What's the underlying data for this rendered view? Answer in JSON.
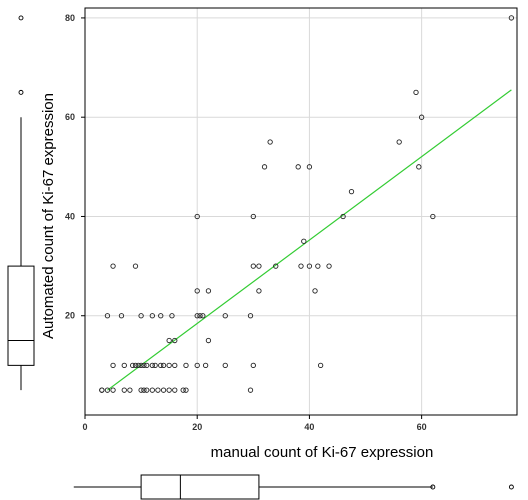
{
  "chart_data": {
    "type": "scatter",
    "title": "",
    "xlabel": "manual count of Ki-67 expression",
    "ylabel": "Automated  count of Ki-67 expression",
    "xlim": [
      0,
      77
    ],
    "ylim": [
      0,
      82
    ],
    "x_ticks": [
      0,
      20,
      40,
      60
    ],
    "y_ticks": [
      20,
      40,
      60,
      80
    ],
    "grid": true,
    "colors": {
      "points": "#222222",
      "trend_line": "#33cc33",
      "grid": "#d9d9d9",
      "axis": "#000000"
    },
    "points": [
      {
        "x": 3,
        "y": 5
      },
      {
        "x": 3,
        "y": 5
      },
      {
        "x": 4,
        "y": 5
      },
      {
        "x": 5,
        "y": 5
      },
      {
        "x": 7,
        "y": 5
      },
      {
        "x": 8,
        "y": 5
      },
      {
        "x": 10,
        "y": 5
      },
      {
        "x": 10.5,
        "y": 5
      },
      {
        "x": 11,
        "y": 5
      },
      {
        "x": 12,
        "y": 5
      },
      {
        "x": 13,
        "y": 5
      },
      {
        "x": 14,
        "y": 5
      },
      {
        "x": 15,
        "y": 5
      },
      {
        "x": 16,
        "y": 5
      },
      {
        "x": 17.5,
        "y": 5
      },
      {
        "x": 18,
        "y": 5
      },
      {
        "x": 29.5,
        "y": 5
      },
      {
        "x": 5,
        "y": 10
      },
      {
        "x": 7,
        "y": 10
      },
      {
        "x": 8.5,
        "y": 10
      },
      {
        "x": 9,
        "y": 10
      },
      {
        "x": 9.5,
        "y": 10
      },
      {
        "x": 10,
        "y": 10
      },
      {
        "x": 10.5,
        "y": 10
      },
      {
        "x": 11,
        "y": 10
      },
      {
        "x": 12,
        "y": 10
      },
      {
        "x": 12.5,
        "y": 10
      },
      {
        "x": 13.5,
        "y": 10
      },
      {
        "x": 14,
        "y": 10
      },
      {
        "x": 15,
        "y": 10
      },
      {
        "x": 16,
        "y": 10
      },
      {
        "x": 18,
        "y": 10
      },
      {
        "x": 20,
        "y": 10
      },
      {
        "x": 21.5,
        "y": 10
      },
      {
        "x": 25,
        "y": 10
      },
      {
        "x": 30,
        "y": 10
      },
      {
        "x": 15,
        "y": 15
      },
      {
        "x": 16,
        "y": 15
      },
      {
        "x": 22,
        "y": 15
      },
      {
        "x": 4,
        "y": 20
      },
      {
        "x": 6.5,
        "y": 20
      },
      {
        "x": 10,
        "y": 20
      },
      {
        "x": 12,
        "y": 20
      },
      {
        "x": 13.5,
        "y": 20
      },
      {
        "x": 15.5,
        "y": 20
      },
      {
        "x": 20,
        "y": 20
      },
      {
        "x": 20.5,
        "y": 20
      },
      {
        "x": 21,
        "y": 20
      },
      {
        "x": 25,
        "y": 20
      },
      {
        "x": 29.5,
        "y": 20
      },
      {
        "x": 20,
        "y": 25
      },
      {
        "x": 22,
        "y": 25
      },
      {
        "x": 31,
        "y": 25
      },
      {
        "x": 41,
        "y": 25
      },
      {
        "x": 5,
        "y": 30
      },
      {
        "x": 9,
        "y": 30
      },
      {
        "x": 30,
        "y": 30
      },
      {
        "x": 31,
        "y": 30
      },
      {
        "x": 34,
        "y": 30
      },
      {
        "x": 38.5,
        "y": 30
      },
      {
        "x": 40,
        "y": 30
      },
      {
        "x": 41.5,
        "y": 30
      },
      {
        "x": 43.5,
        "y": 30
      },
      {
        "x": 39,
        "y": 35
      },
      {
        "x": 20,
        "y": 40
      },
      {
        "x": 30,
        "y": 40
      },
      {
        "x": 46,
        "y": 40
      },
      {
        "x": 62,
        "y": 40
      },
      {
        "x": 47.5,
        "y": 45
      },
      {
        "x": 32,
        "y": 50
      },
      {
        "x": 38,
        "y": 50
      },
      {
        "x": 40,
        "y": 50
      },
      {
        "x": 59.5,
        "y": 50
      },
      {
        "x": 33,
        "y": 55
      },
      {
        "x": 56,
        "y": 55
      },
      {
        "x": 60,
        "y": 60
      },
      {
        "x": 59,
        "y": 65
      },
      {
        "x": 76,
        "y": 80
      },
      {
        "x": 42,
        "y": 10
      }
    ],
    "trend_line": {
      "x": [
        4,
        76
      ],
      "y": [
        5,
        65.5
      ]
    },
    "x_boxplot": {
      "min": 3,
      "q1": 10,
      "median": 17,
      "q3": 31,
      "whisker_max": 62,
      "outliers": [
        76
      ]
    },
    "y_boxplot": {
      "min": 5,
      "q1": 10,
      "median": 15,
      "q3": 30,
      "whisker_max": 60,
      "outliers": [
        65,
        80
      ]
    }
  }
}
